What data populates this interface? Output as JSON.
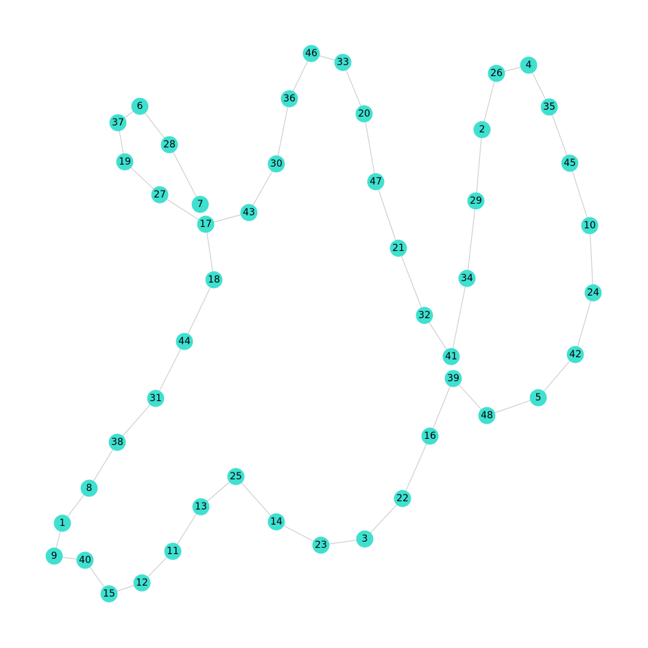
{
  "colors": {
    "node": "#40e0d0",
    "edge": "#cfcfcf",
    "label": "#000000",
    "background": "#ffffff"
  },
  "graph": {
    "nodes": [
      "1",
      "2",
      "3",
      "4",
      "5",
      "6",
      "7",
      "8",
      "9",
      "10",
      "11",
      "12",
      "13",
      "14",
      "15",
      "16",
      "17",
      "18",
      "19",
      "20",
      "21",
      "22",
      "23",
      "24",
      "25",
      "26",
      "27",
      "28",
      "29",
      "30",
      "31",
      "32",
      "33",
      "34",
      "35",
      "36",
      "37",
      "38",
      "39",
      "40",
      "41",
      "42",
      "43",
      "44",
      "45",
      "46",
      "47",
      "48"
    ],
    "edges": [
      [
        "46",
        "33"
      ],
      [
        "46",
        "36"
      ],
      [
        "33",
        "20"
      ],
      [
        "20",
        "47"
      ],
      [
        "47",
        "21"
      ],
      [
        "21",
        "32"
      ],
      [
        "32",
        "41"
      ],
      [
        "41",
        "34"
      ],
      [
        "34",
        "29"
      ],
      [
        "29",
        "2"
      ],
      [
        "2",
        "26"
      ],
      [
        "26",
        "4"
      ],
      [
        "4",
        "35"
      ],
      [
        "35",
        "45"
      ],
      [
        "45",
        "10"
      ],
      [
        "10",
        "24"
      ],
      [
        "24",
        "42"
      ],
      [
        "42",
        "5"
      ],
      [
        "5",
        "48"
      ],
      [
        "48",
        "39"
      ],
      [
        "39",
        "16"
      ],
      [
        "16",
        "22"
      ],
      [
        "22",
        "3"
      ],
      [
        "3",
        "23"
      ],
      [
        "23",
        "14"
      ],
      [
        "14",
        "25"
      ],
      [
        "25",
        "13"
      ],
      [
        "13",
        "11"
      ],
      [
        "11",
        "12"
      ],
      [
        "12",
        "15"
      ],
      [
        "15",
        "40"
      ],
      [
        "40",
        "9"
      ],
      [
        "9",
        "1"
      ],
      [
        "1",
        "8"
      ],
      [
        "8",
        "38"
      ],
      [
        "38",
        "31"
      ],
      [
        "31",
        "44"
      ],
      [
        "44",
        "18"
      ],
      [
        "18",
        "17"
      ],
      [
        "17",
        "43"
      ],
      [
        "43",
        "30"
      ],
      [
        "30",
        "36"
      ],
      [
        "17",
        "27"
      ],
      [
        "27",
        "19"
      ],
      [
        "19",
        "37"
      ],
      [
        "37",
        "6"
      ],
      [
        "6",
        "28"
      ],
      [
        "28",
        "7"
      ]
    ]
  }
}
